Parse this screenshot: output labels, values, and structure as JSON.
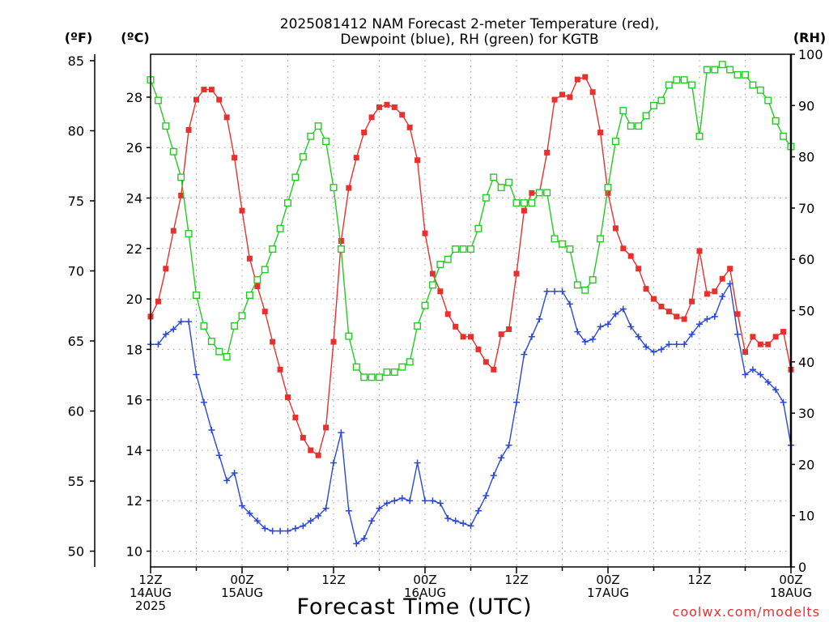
{
  "chart_data": {
    "type": "line",
    "title_line1": "2025081412 NAM Forecast 2-meter Temperature (red),",
    "title_line2": "Dewpoint (blue), RH (green) for KGTB",
    "xlabel": "Forecast Time (UTC)",
    "watermark": "coolwx.com/modelts",
    "units": {
      "f": "(ºF)",
      "c": "(ºC)",
      "rh": "(RH)"
    },
    "hours_range": [
      0,
      84
    ],
    "celsius_range": [
      9.375,
      29.7
    ],
    "rh_range": [
      0,
      100
    ],
    "fahrenheit_ticks": [
      {
        "value": 50,
        "label": "50"
      },
      {
        "value": 55,
        "label": "55"
      },
      {
        "value": 60,
        "label": "60"
      },
      {
        "value": 65,
        "label": "65"
      },
      {
        "value": 70,
        "label": "70"
      },
      {
        "value": 75,
        "label": "75"
      },
      {
        "value": 80,
        "label": "80"
      },
      {
        "value": 85,
        "label": "85"
      }
    ],
    "celsius_ticks": [
      {
        "value": 10,
        "label": "10"
      },
      {
        "value": 12,
        "label": "12"
      },
      {
        "value": 14,
        "label": "14"
      },
      {
        "value": 16,
        "label": "16"
      },
      {
        "value": 18,
        "label": "18"
      },
      {
        "value": 20,
        "label": "20"
      },
      {
        "value": 22,
        "label": "22"
      },
      {
        "value": 24,
        "label": "24"
      },
      {
        "value": 26,
        "label": "26"
      },
      {
        "value": 28,
        "label": "28"
      }
    ],
    "rh_ticks": [
      {
        "value": 0,
        "label": "0"
      },
      {
        "value": 10,
        "label": "10"
      },
      {
        "value": 20,
        "label": "20"
      },
      {
        "value": 30,
        "label": "30"
      },
      {
        "value": 40,
        "label": "40"
      },
      {
        "value": 50,
        "label": "50"
      },
      {
        "value": 60,
        "label": "60"
      },
      {
        "value": 70,
        "label": "70"
      },
      {
        "value": 80,
        "label": "80"
      },
      {
        "value": 90,
        "label": "90"
      },
      {
        "value": 100,
        "label": "100"
      }
    ],
    "x_ticks": [
      {
        "hour": 0,
        "lines": [
          "12Z",
          "14AUG",
          "2025"
        ]
      },
      {
        "hour": 12,
        "lines": [
          "00Z",
          "15AUG"
        ]
      },
      {
        "hour": 24,
        "lines": [
          "12Z"
        ]
      },
      {
        "hour": 36,
        "lines": [
          "00Z",
          "16AUG"
        ]
      },
      {
        "hour": 48,
        "lines": [
          "12Z"
        ]
      },
      {
        "hour": 60,
        "lines": [
          "00Z",
          "17AUG"
        ]
      },
      {
        "hour": 72,
        "lines": [
          "12Z"
        ]
      },
      {
        "hour": 84,
        "lines": [
          "00Z",
          "18AUG"
        ]
      }
    ],
    "grid": true,
    "series": [
      {
        "key": "temperature",
        "color": "#e8312f",
        "marker": "filled-square",
        "unit": "C",
        "points": [
          [
            0,
            19.3
          ],
          [
            1,
            19.9
          ],
          [
            2,
            21.2
          ],
          [
            3,
            22.7
          ],
          [
            4,
            24.1
          ],
          [
            5,
            26.7
          ],
          [
            6,
            27.9
          ],
          [
            7,
            28.3
          ],
          [
            8,
            28.3
          ],
          [
            9,
            27.9
          ],
          [
            10,
            27.2
          ],
          [
            11,
            25.6
          ],
          [
            12,
            23.5
          ],
          [
            13,
            21.6
          ],
          [
            14,
            20.5
          ],
          [
            15,
            19.5
          ],
          [
            16,
            18.3
          ],
          [
            17,
            17.2
          ],
          [
            18,
            16.1
          ],
          [
            19,
            15.3
          ],
          [
            20,
            14.5
          ],
          [
            21,
            14.0
          ],
          [
            22,
            13.8
          ],
          [
            23,
            14.9
          ],
          [
            24,
            18.3
          ],
          [
            25,
            22.3
          ],
          [
            26,
            24.4
          ],
          [
            27,
            25.6
          ],
          [
            28,
            26.6
          ],
          [
            29,
            27.2
          ],
          [
            30,
            27.6
          ],
          [
            31,
            27.7
          ],
          [
            32,
            27.6
          ],
          [
            33,
            27.3
          ],
          [
            34,
            26.8
          ],
          [
            35,
            25.5
          ],
          [
            36,
            22.6
          ],
          [
            37,
            21.0
          ],
          [
            38,
            20.3
          ],
          [
            39,
            19.4
          ],
          [
            40,
            18.9
          ],
          [
            41,
            18.5
          ],
          [
            42,
            18.5
          ],
          [
            43,
            18.0
          ],
          [
            44,
            17.5
          ],
          [
            45,
            17.2
          ],
          [
            46,
            18.6
          ],
          [
            47,
            18.8
          ],
          [
            48,
            21.0
          ],
          [
            49,
            23.5
          ],
          [
            50,
            24.2
          ],
          [
            51,
            24.2
          ],
          [
            52,
            25.8
          ],
          [
            53,
            27.9
          ],
          [
            54,
            28.1
          ],
          [
            55,
            28.0
          ],
          [
            56,
            28.7
          ],
          [
            57,
            28.8
          ],
          [
            58,
            28.2
          ],
          [
            59,
            26.6
          ],
          [
            60,
            24.2
          ],
          [
            61,
            22.8
          ],
          [
            62,
            22.0
          ],
          [
            63,
            21.7
          ],
          [
            64,
            21.2
          ],
          [
            65,
            20.4
          ],
          [
            66,
            20.0
          ],
          [
            67,
            19.7
          ],
          [
            68,
            19.5
          ],
          [
            69,
            19.3
          ],
          [
            70,
            19.2
          ],
          [
            71,
            19.9
          ],
          [
            72,
            21.9
          ],
          [
            73,
            20.2
          ],
          [
            74,
            20.3
          ],
          [
            75,
            20.8
          ],
          [
            76,
            21.2
          ],
          [
            77,
            19.4
          ],
          [
            78,
            17.9
          ],
          [
            79,
            18.5
          ],
          [
            80,
            18.2
          ],
          [
            81,
            18.2
          ],
          [
            82,
            18.5
          ],
          [
            83,
            18.7
          ],
          [
            84,
            17.2
          ]
        ]
      },
      {
        "key": "dewpoint",
        "color": "#2a47d9",
        "marker": "plus",
        "unit": "C",
        "points": [
          [
            0,
            18.2
          ],
          [
            1,
            18.2
          ],
          [
            2,
            18.6
          ],
          [
            3,
            18.8
          ],
          [
            4,
            19.1
          ],
          [
            5,
            19.1
          ],
          [
            6,
            17.0
          ],
          [
            7,
            15.9
          ],
          [
            8,
            14.8
          ],
          [
            9,
            13.8
          ],
          [
            10,
            12.8
          ],
          [
            11,
            13.1
          ],
          [
            12,
            11.8
          ],
          [
            13,
            11.5
          ],
          [
            14,
            11.2
          ],
          [
            15,
            10.9
          ],
          [
            16,
            10.8
          ],
          [
            17,
            10.8
          ],
          [
            18,
            10.8
          ],
          [
            19,
            10.9
          ],
          [
            20,
            11.0
          ],
          [
            21,
            11.2
          ],
          [
            22,
            11.4
          ],
          [
            23,
            11.7
          ],
          [
            24,
            13.5
          ],
          [
            25,
            14.7
          ],
          [
            26,
            11.6
          ],
          [
            27,
            10.3
          ],
          [
            28,
            10.5
          ],
          [
            29,
            11.2
          ],
          [
            30,
            11.7
          ],
          [
            31,
            11.9
          ],
          [
            32,
            12.0
          ],
          [
            33,
            12.1
          ],
          [
            34,
            12.0
          ],
          [
            35,
            13.5
          ],
          [
            36,
            12.0
          ],
          [
            37,
            12.0
          ],
          [
            38,
            11.9
          ],
          [
            39,
            11.3
          ],
          [
            40,
            11.2
          ],
          [
            41,
            11.1
          ],
          [
            42,
            11.0
          ],
          [
            43,
            11.6
          ],
          [
            44,
            12.2
          ],
          [
            45,
            13.0
          ],
          [
            46,
            13.7
          ],
          [
            47,
            14.2
          ],
          [
            48,
            15.9
          ],
          [
            49,
            17.8
          ],
          [
            50,
            18.5
          ],
          [
            51,
            19.2
          ],
          [
            52,
            20.3
          ],
          [
            53,
            20.3
          ],
          [
            54,
            20.3
          ],
          [
            55,
            19.8
          ],
          [
            56,
            18.7
          ],
          [
            57,
            18.3
          ],
          [
            58,
            18.4
          ],
          [
            59,
            18.9
          ],
          [
            60,
            19.0
          ],
          [
            61,
            19.4
          ],
          [
            62,
            19.6
          ],
          [
            63,
            18.9
          ],
          [
            64,
            18.5
          ],
          [
            65,
            18.1
          ],
          [
            66,
            17.9
          ],
          [
            67,
            18.0
          ],
          [
            68,
            18.2
          ],
          [
            69,
            18.2
          ],
          [
            70,
            18.2
          ],
          [
            71,
            18.6
          ],
          [
            72,
            19.0
          ],
          [
            73,
            19.2
          ],
          [
            74,
            19.3
          ],
          [
            75,
            20.1
          ],
          [
            76,
            20.6
          ],
          [
            77,
            18.6
          ],
          [
            78,
            17.0
          ],
          [
            79,
            17.2
          ],
          [
            80,
            17.0
          ],
          [
            81,
            16.7
          ],
          [
            82,
            16.4
          ],
          [
            83,
            15.9
          ],
          [
            84,
            14.2
          ]
        ]
      },
      {
        "key": "rh",
        "color": "#22cc22",
        "marker": "open-square",
        "unit": "RH",
        "points": [
          [
            0,
            95
          ],
          [
            1,
            91
          ],
          [
            2,
            86
          ],
          [
            3,
            81
          ],
          [
            4,
            76
          ],
          [
            5,
            65
          ],
          [
            6,
            53
          ],
          [
            7,
            47
          ],
          [
            8,
            44
          ],
          [
            9,
            42
          ],
          [
            10,
            41
          ],
          [
            11,
            47
          ],
          [
            12,
            49
          ],
          [
            13,
            53
          ],
          [
            14,
            56
          ],
          [
            15,
            58
          ],
          [
            16,
            62
          ],
          [
            17,
            66
          ],
          [
            18,
            71
          ],
          [
            19,
            76
          ],
          [
            20,
            80
          ],
          [
            21,
            84
          ],
          [
            22,
            86
          ],
          [
            23,
            83
          ],
          [
            24,
            74
          ],
          [
            25,
            62
          ],
          [
            26,
            45
          ],
          [
            27,
            39
          ],
          [
            28,
            37
          ],
          [
            29,
            37
          ],
          [
            30,
            37
          ],
          [
            31,
            38
          ],
          [
            32,
            38
          ],
          [
            33,
            39
          ],
          [
            34,
            40
          ],
          [
            35,
            47
          ],
          [
            36,
            51
          ],
          [
            37,
            55
          ],
          [
            38,
            59
          ],
          [
            39,
            60
          ],
          [
            40,
            62
          ],
          [
            41,
            62
          ],
          [
            42,
            62
          ],
          [
            43,
            66
          ],
          [
            44,
            72
          ],
          [
            45,
            76
          ],
          [
            46,
            74
          ],
          [
            47,
            75
          ],
          [
            48,
            71
          ],
          [
            49,
            71
          ],
          [
            50,
            71
          ],
          [
            51,
            73
          ],
          [
            52,
            73
          ],
          [
            53,
            64
          ],
          [
            54,
            63
          ],
          [
            55,
            62
          ],
          [
            56,
            55
          ],
          [
            57,
            54
          ],
          [
            58,
            56
          ],
          [
            59,
            64
          ],
          [
            60,
            74
          ],
          [
            61,
            83
          ],
          [
            62,
            89
          ],
          [
            63,
            86
          ],
          [
            64,
            86
          ],
          [
            65,
            88
          ],
          [
            66,
            90
          ],
          [
            67,
            91
          ],
          [
            68,
            94
          ],
          [
            69,
            95
          ],
          [
            70,
            95
          ],
          [
            71,
            94
          ],
          [
            72,
            84
          ],
          [
            73,
            97
          ],
          [
            74,
            97
          ],
          [
            75,
            98
          ],
          [
            76,
            97
          ],
          [
            77,
            96
          ],
          [
            78,
            96
          ],
          [
            79,
            94
          ],
          [
            80,
            93
          ],
          [
            81,
            91
          ],
          [
            82,
            87
          ],
          [
            83,
            84
          ],
          [
            84,
            82
          ]
        ]
      }
    ]
  }
}
